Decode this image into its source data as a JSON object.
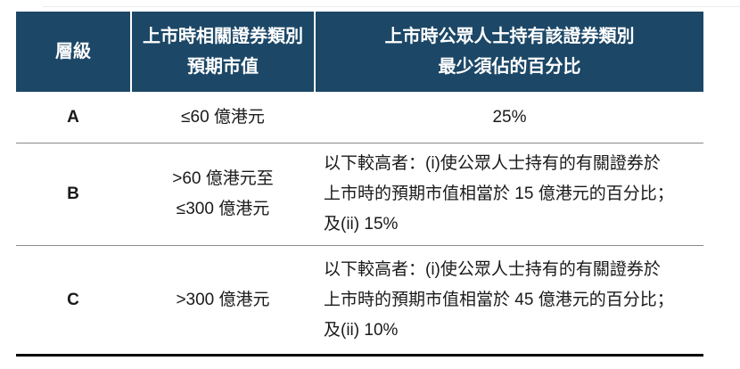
{
  "colors": {
    "header_bg": "#1c4767",
    "header_text": "#ffffff",
    "row_divider": "#8a8a8a",
    "bottom_border": "#000000",
    "body_text": "#1a1a1a"
  },
  "table": {
    "header": {
      "tier": "層級",
      "col2_line1": "上市時相關證券類別",
      "col2_line2": "預期市值",
      "col3_line1": "上市時公眾人士持有該證券類別",
      "col3_line2": "最少須佔的百分比"
    },
    "rows": [
      {
        "tier": "A",
        "cap": [
          "≤60 億港元"
        ],
        "req": [
          "25%"
        ]
      },
      {
        "tier": "B",
        "cap": [
          ">60 億港元至",
          "≤300 億港元"
        ],
        "req": [
          "以下較高者：(i)使公眾人士持有的有關證券於",
          "上市時的預期市值相當於 15 億港元的百分比；",
          "及(ii) 15%"
        ]
      },
      {
        "tier": "C",
        "cap": [
          ">300 億港元"
        ],
        "req": [
          "以下較高者：(i)使公眾人士持有的有關證券於",
          "上市時的預期市值相當於 45 億港元的百分比；",
          "及(ii) 10%"
        ]
      }
    ]
  }
}
